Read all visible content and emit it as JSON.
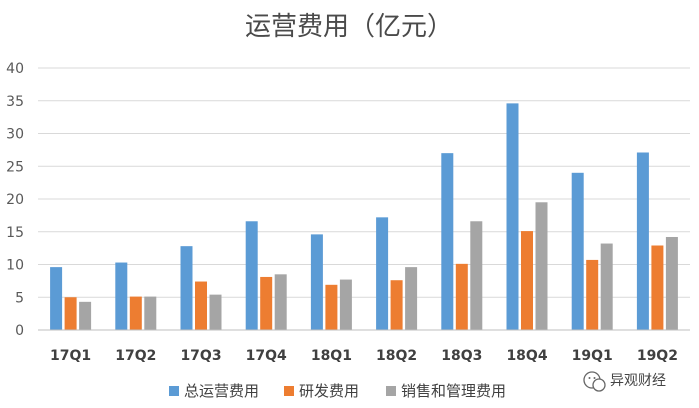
{
  "chart_data": {
    "type": "bar",
    "title": "运营费用（亿元）",
    "categories": [
      "17Q1",
      "17Q2",
      "17Q3",
      "17Q4",
      "18Q1",
      "18Q2",
      "18Q3",
      "18Q4",
      "19Q1",
      "19Q2"
    ],
    "series": [
      {
        "name": "总运营费用",
        "color": "#5b9bd5",
        "values": [
          9.6,
          10.3,
          12.8,
          16.6,
          14.6,
          17.2,
          27.0,
          34.6,
          24.0,
          27.1
        ]
      },
      {
        "name": "研发费用",
        "color": "#ed7d31",
        "values": [
          5.0,
          5.1,
          7.4,
          8.1,
          6.9,
          7.6,
          10.1,
          15.1,
          10.7,
          12.9
        ]
      },
      {
        "name": "销售和管理费用",
        "color": "#a5a5a5",
        "values": [
          4.3,
          5.1,
          5.4,
          8.5,
          7.7,
          9.6,
          16.6,
          19.5,
          13.2,
          14.2
        ]
      }
    ],
    "yticks": [
      0,
      5,
      10,
      15,
      20,
      25,
      30,
      35,
      40
    ],
    "ylim": [
      0,
      40
    ],
    "grid": true,
    "legend": "bottom",
    "xlabel": "",
    "ylabel": ""
  },
  "watermark": {
    "text": "异观财经",
    "icon": "wechat-icon"
  }
}
